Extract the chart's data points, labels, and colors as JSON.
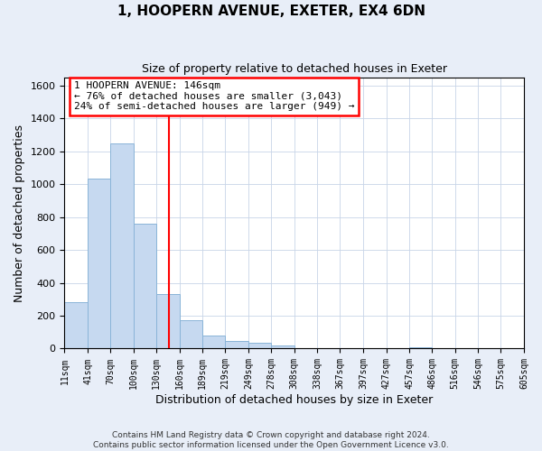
{
  "title": "1, HOOPERN AVENUE, EXETER, EX4 6DN",
  "subtitle": "Size of property relative to detached houses in Exeter",
  "xlabel": "Distribution of detached houses by size in Exeter",
  "ylabel": "Number of detached properties",
  "bin_edges": [
    11,
    41,
    70,
    100,
    130,
    160,
    189,
    219,
    249,
    278,
    308,
    338,
    367,
    397,
    427,
    457,
    486,
    516,
    546,
    575,
    605
  ],
  "bar_heights": [
    280,
    1035,
    1245,
    760,
    330,
    175,
    80,
    48,
    35,
    18,
    0,
    0,
    0,
    0,
    0,
    10,
    0,
    0,
    0,
    0
  ],
  "bar_color": "#c6d9f0",
  "bar_edgecolor": "#8ab4d8",
  "vline_x": 146,
  "vline_color": "red",
  "ylim": [
    0,
    1650
  ],
  "yticks": [
    0,
    200,
    400,
    600,
    800,
    1000,
    1200,
    1400,
    1600
  ],
  "tick_labels": [
    "11sqm",
    "41sqm",
    "70sqm",
    "100sqm",
    "130sqm",
    "160sqm",
    "189sqm",
    "219sqm",
    "249sqm",
    "278sqm",
    "308sqm",
    "338sqm",
    "367sqm",
    "397sqm",
    "427sqm",
    "457sqm",
    "486sqm",
    "516sqm",
    "546sqm",
    "575sqm",
    "605sqm"
  ],
  "annotation_title": "1 HOOPERN AVENUE: 146sqm",
  "annotation_line1": "← 76% of detached houses are smaller (3,043)",
  "annotation_line2": "24% of semi-detached houses are larger (949) →",
  "footer1": "Contains HM Land Registry data © Crown copyright and database right 2024.",
  "footer2": "Contains public sector information licensed under the Open Government Licence v3.0.",
  "background_color": "#e8eef8",
  "plot_bg_color": "#ffffff",
  "grid_color": "#c8d4e8"
}
